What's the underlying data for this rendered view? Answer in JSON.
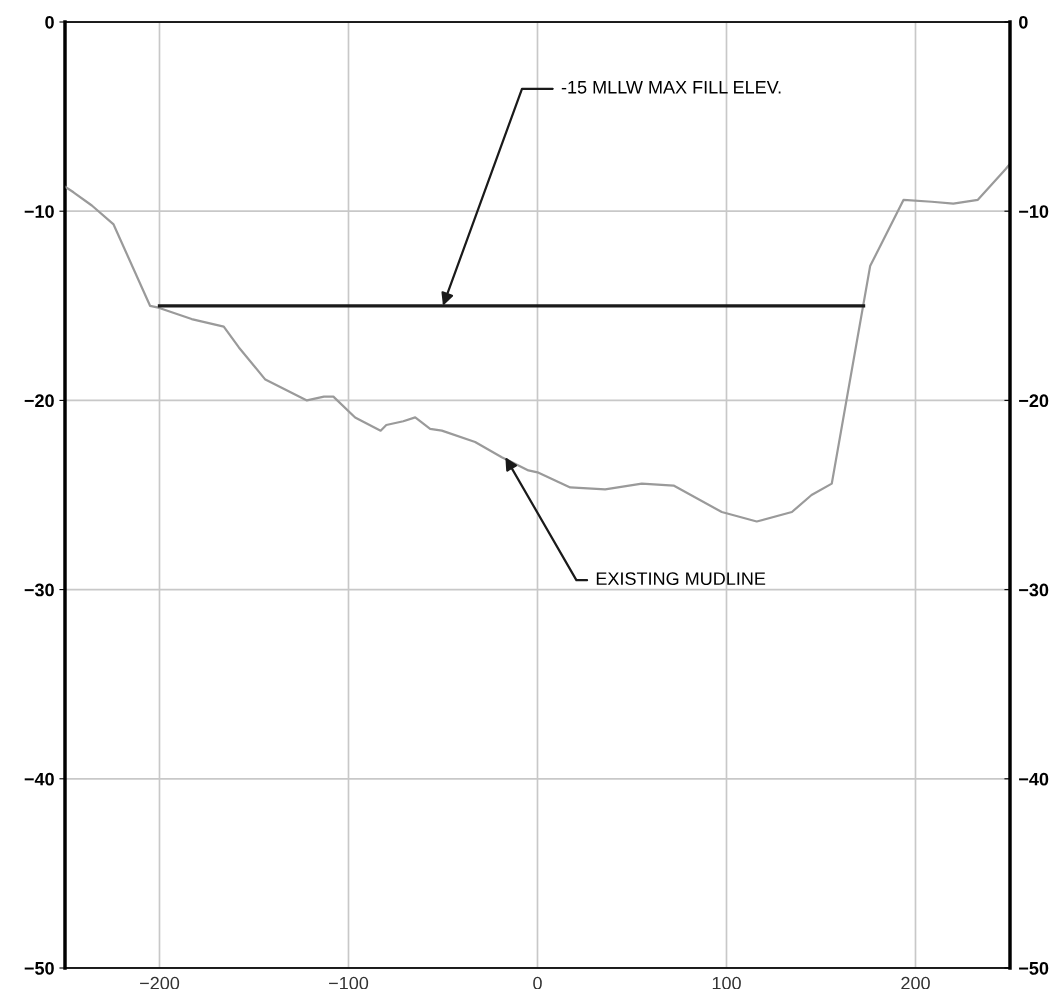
{
  "chart_data": {
    "type": "line",
    "xlim": [
      -250,
      250
    ],
    "xticks": [
      {
        "value": -200,
        "label": "−200"
      },
      {
        "value": -100,
        "label": "−100"
      },
      0,
      100,
      200
    ],
    "ylim": [
      -50,
      0
    ],
    "yticks": [
      {
        "value": -50,
        "label": "−50"
      },
      {
        "value": -40,
        "label": "−40"
      },
      {
        "value": -30,
        "label": "−30"
      },
      {
        "value": -20,
        "label": "−20"
      },
      {
        "value": -10,
        "label": "−10"
      },
      0
    ],
    "y2lim": [
      -50,
      0
    ],
    "y2ticks": [
      {
        "value": -50,
        "label": "−50"
      },
      {
        "value": -40,
        "label": "−40"
      },
      {
        "value": -30,
        "label": "−30"
      },
      {
        "value": -20,
        "label": "−20"
      },
      {
        "value": -10,
        "label": "−10"
      },
      0
    ],
    "grid": true,
    "marker": "none",
    "line_style": "solid",
    "series": [
      {
        "color": "#9a9a9a",
        "x": [
          -250,
          -245.5,
          -235.8,
          -224.3,
          -205,
          -200.5,
          -183,
          -166,
          -158,
          -144,
          -122,
          -113,
          -108,
          -96.5,
          -83,
          -80,
          -71,
          -64.7,
          -56.8,
          -50.6,
          -33,
          -18.9,
          -4.8,
          0,
          17.3,
          35.8,
          55.2,
          72,
          97.5,
          116,
          134.6,
          145,
          155.7,
          176,
          193.7,
          208.6,
          220,
          233,
          247.5,
          250
        ],
        "values": [
          -8.7,
          -9.0,
          -9.7,
          -10.7,
          -15.0,
          -15.1,
          -15.7,
          -16.1,
          -17.2,
          -18.9,
          -20.0,
          -19.8,
          -19.8,
          -20.9,
          -21.6,
          -21.3,
          -21.1,
          -20.9,
          -21.5,
          -21.6,
          -22.2,
          -23.0,
          -23.7,
          -23.8,
          -24.6,
          -24.7,
          -24.4,
          -24.5,
          -25.9,
          -26.4,
          -25.9,
          -25.0,
          -24.4,
          -12.9,
          -9.4,
          -9.5,
          -9.6,
          -9.4,
          -7.8,
          -7.5
        ]
      },
      {
        "color": "#1a1a1a",
        "x": [
          -200,
          172.5
        ],
        "values": [
          -15,
          -15
        ]
      }
    ],
    "annotations": [
      {
        "text": "-15 MLLW MAX FILL ELEV.",
        "x": -50,
        "y": -15
      },
      {
        "text": "EXISTING MUDLINE",
        "x": -17,
        "y": -23
      }
    ]
  }
}
